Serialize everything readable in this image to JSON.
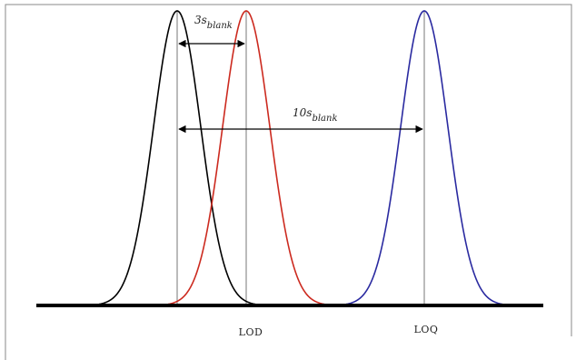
{
  "labels": {
    "lod": "LOD",
    "loq": "LOQ",
    "arrow_3s": {
      "coef": "3s",
      "sub": "blank"
    },
    "arrow_10s": {
      "coef": "10s",
      "sub": "blank"
    }
  },
  "colors": {
    "blank_curve": "#000000",
    "lod_curve": "#cc2a1f",
    "loq_curve": "#2a2aa0",
    "baseline": "#000000",
    "guide_line": "#777777",
    "border": "#888888"
  }
}
